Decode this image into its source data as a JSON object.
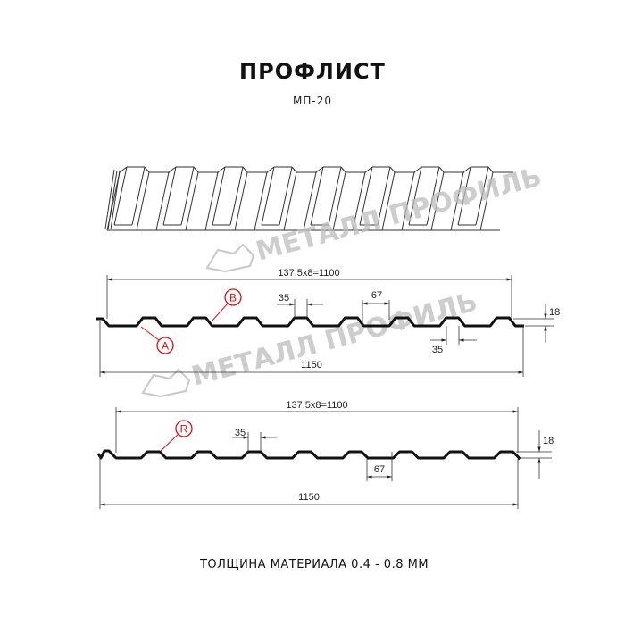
{
  "header": {
    "title": "ПРОФЛИСТ",
    "subtitle": "МП-20"
  },
  "watermark": {
    "text": "МЕТАЛЛ ПРОФИЛЬ"
  },
  "profile_top": {
    "pitch_label": "137,5x8=1100",
    "width_label": "1150",
    "crest_label": "35",
    "valley_label": "67",
    "crest_label_lower": "35",
    "height_label": "18",
    "marker_a": "A",
    "marker_b": "B"
  },
  "profile_bottom": {
    "pitch_label": "137.5x8=1100",
    "width_label": "1150",
    "crest_label": "35",
    "valley_label": "67",
    "height_label": "18",
    "marker_r": "R"
  },
  "footer": {
    "text": "ТОЛЩИНА МАТЕРИАЛА 0.4 - 0.8 ММ"
  },
  "colors": {
    "line": "#111111",
    "marker": "#e01010",
    "watermark": "#bdbdbd"
  }
}
